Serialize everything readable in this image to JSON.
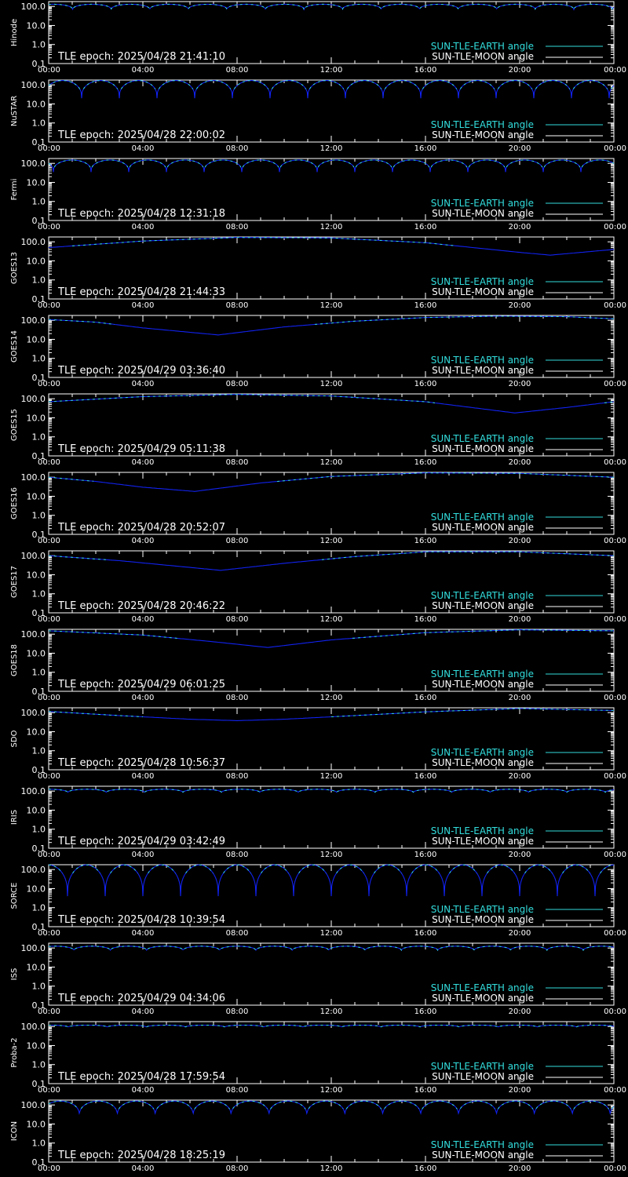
{
  "styles": {
    "background": "#000000",
    "axis_color": "#ffffff",
    "earth_angle_color": "#33dddd",
    "moon_angle_color": "#ffffff",
    "curve_color": "#1122ee"
  },
  "legend": {
    "earth_label": "SUN-TLE-EARTH angle",
    "moon_label": "SUN-TLE-MOON angle",
    "placement": "bottom-right"
  },
  "axes": {
    "x_ticks": [
      "00:00",
      "04:00",
      "08:00",
      "12:00",
      "16:00",
      "20:00",
      "00:00"
    ],
    "y_ticks": [
      "100.0",
      "10.0",
      "1.0",
      "0.1"
    ],
    "y_scale": "log",
    "ylim": [
      0.1,
      180
    ],
    "xlim_hours": [
      0,
      24
    ]
  },
  "chart_data": [
    {
      "type": "line",
      "satellite": "Hinode",
      "epoch_label": "TLE epoch: 2025/04/28 21:41:10",
      "series": [
        {
          "name": "SUN-TLE-EARTH angle",
          "shape": "periodic",
          "period_hours": 1.637,
          "max": 130,
          "min": 65,
          "phase_hours": 0.2
        }
      ]
    },
    {
      "type": "line",
      "satellite": "NuSTAR",
      "epoch_label": "TLE epoch: 2025/04/28 22:00:02",
      "series": [
        {
          "name": "SUN-TLE-EARTH angle",
          "shape": "periodic",
          "period_hours": 1.6,
          "max": 170,
          "min": 20,
          "phase_hours": 0.6
        }
      ]
    },
    {
      "type": "line",
      "satellite": "Fermi",
      "epoch_label": "TLE epoch: 2025/04/28 12:31:18",
      "series": [
        {
          "name": "SUN-TLE-EARTH angle",
          "shape": "periodic",
          "period_hours": 1.6,
          "max": 150,
          "min": 35,
          "phase_hours": 1.0
        }
      ]
    },
    {
      "type": "line",
      "satellite": "GOES13",
      "epoch_label": "TLE epoch: 2025/04/28 21:44:33",
      "series": [
        {
          "name": "SUN-TLE-EARTH angle",
          "shape": "points",
          "x": [
            0,
            4,
            8,
            12,
            16,
            20,
            21.3,
            24
          ],
          "y": [
            50,
            110,
            170,
            160,
            90,
            28,
            20,
            40
          ]
        }
      ]
    },
    {
      "type": "line",
      "satellite": "GOES14",
      "epoch_label": "TLE epoch: 2025/04/29 03:36:40",
      "series": [
        {
          "name": "SUN-TLE-EARTH angle",
          "shape": "points",
          "x": [
            0,
            2,
            4,
            7.2,
            10,
            13,
            16,
            19,
            22,
            24
          ],
          "y": [
            110,
            80,
            40,
            17,
            45,
            90,
            140,
            165,
            155,
            120
          ]
        }
      ]
    },
    {
      "type": "line",
      "satellite": "GOES15",
      "epoch_label": "TLE epoch: 2025/04/29 05:11:38",
      "series": [
        {
          "name": "SUN-TLE-EARTH angle",
          "shape": "points",
          "x": [
            0,
            4,
            8,
            12,
            16,
            19.8,
            22,
            24
          ],
          "y": [
            70,
            130,
            170,
            140,
            70,
            18,
            35,
            70
          ]
        }
      ]
    },
    {
      "type": "line",
      "satellite": "GOES16",
      "epoch_label": "TLE epoch: 2025/04/28 20:52:07",
      "series": [
        {
          "name": "SUN-TLE-EARTH angle",
          "shape": "points",
          "x": [
            0,
            2,
            4,
            6.2,
            9,
            12,
            16,
            20,
            24
          ],
          "y": [
            100,
            60,
            30,
            18,
            50,
            110,
            170,
            160,
            100
          ]
        }
      ]
    },
    {
      "type": "line",
      "satellite": "GOES17",
      "epoch_label": "TLE epoch: 2025/04/28 20:46:22",
      "series": [
        {
          "name": "SUN-TLE-EARTH angle",
          "shape": "points",
          "x": [
            0,
            3,
            7.3,
            10,
            13,
            16,
            20,
            24
          ],
          "y": [
            100,
            55,
            17,
            40,
            90,
            160,
            160,
            100
          ]
        }
      ]
    },
    {
      "type": "line",
      "satellite": "GOES18",
      "epoch_label": "TLE epoch: 2025/04/29 06:01:25",
      "series": [
        {
          "name": "SUN-TLE-EARTH angle",
          "shape": "points",
          "x": [
            0,
            4,
            7,
            9.3,
            12,
            16,
            20,
            24
          ],
          "y": [
            150,
            90,
            40,
            20,
            50,
            120,
            170,
            150
          ]
        }
      ]
    },
    {
      "type": "line",
      "satellite": "SDO",
      "epoch_label": "TLE epoch: 2025/04/28 10:56:37",
      "series": [
        {
          "name": "SUN-TLE-EARTH angle",
          "shape": "points",
          "x": [
            0,
            3,
            6,
            8,
            10,
            13,
            16,
            20,
            24
          ],
          "y": [
            115,
            70,
            45,
            38,
            45,
            70,
            110,
            165,
            130
          ]
        }
      ]
    },
    {
      "type": "line",
      "satellite": "IRIS",
      "epoch_label": "TLE epoch: 2025/04/29 03:42:49",
      "series": [
        {
          "name": "SUN-TLE-EARTH angle",
          "shape": "periodic",
          "period_hours": 1.63,
          "max": 125,
          "min": 80,
          "phase_hours": 0.0
        }
      ]
    },
    {
      "type": "line",
      "satellite": "SORCE",
      "epoch_label": "TLE epoch: 2025/04/28 10:39:54",
      "series": [
        {
          "name": "SUN-TLE-EARTH angle",
          "shape": "periodic",
          "period_hours": 1.6,
          "max": 175,
          "min": 4,
          "phase_hours": 0.0
        }
      ]
    },
    {
      "type": "line",
      "satellite": "ISS",
      "epoch_label": "TLE epoch: 2025/04/29 04:34:06",
      "series": [
        {
          "name": "SUN-TLE-EARTH angle",
          "shape": "periodic",
          "period_hours": 1.545,
          "max": 125,
          "min": 70,
          "phase_hours": 0.3
        }
      ]
    },
    {
      "type": "line",
      "satellite": "Proba-2",
      "epoch_label": "TLE epoch: 2025/04/28 17:59:54",
      "series": [
        {
          "name": "SUN-TLE-EARTH angle",
          "shape": "periodic",
          "period_hours": 1.66,
          "max": 118,
          "min": 90,
          "phase_hours": 0.0
        }
      ]
    },
    {
      "type": "line",
      "satellite": "ICON",
      "epoch_label": "TLE epoch: 2025/04/28 18:25:19",
      "series": [
        {
          "name": "SUN-TLE-EARTH angle",
          "shape": "periodic",
          "period_hours": 1.61,
          "max": 160,
          "min": 25,
          "phase_hours": 0.5
        }
      ]
    }
  ]
}
